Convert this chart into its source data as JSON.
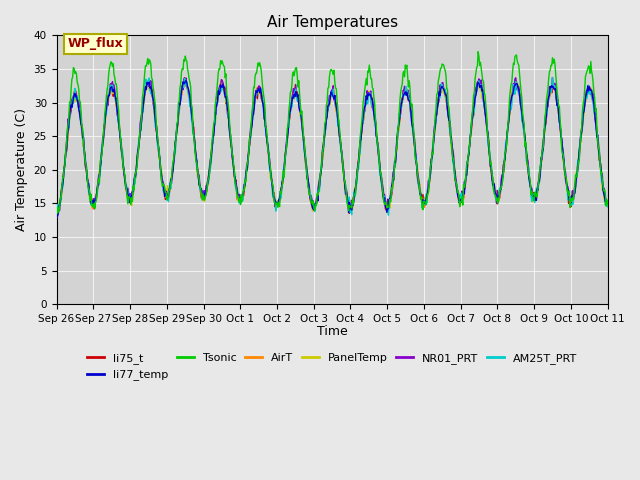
{
  "title": "Air Temperatures",
  "ylabel": "Air Temperature (C)",
  "xlabel": "Time",
  "ylim": [
    0,
    40
  ],
  "yticks": [
    0,
    5,
    10,
    15,
    20,
    25,
    30,
    35,
    40
  ],
  "fig_facecolor": "#e8e8e8",
  "ax_facecolor": "#d3d3d3",
  "legend_items": [
    {
      "label": "li75_t",
      "color": "#cc0000"
    },
    {
      "label": "li77_temp",
      "color": "#0000cc"
    },
    {
      "label": "Tsonic",
      "color": "#00cc00"
    },
    {
      "label": "AirT",
      "color": "#ff8800"
    },
    {
      "label": "PanelTemp",
      "color": "#cccc00"
    },
    {
      "label": "NR01_PRT",
      "color": "#8800cc"
    },
    {
      "label": "AM25T_PRT",
      "color": "#00cccc"
    }
  ],
  "xtick_labels": [
    "Sep 26",
    "Sep 27",
    "Sep 28",
    "Sep 29",
    "Sep 30",
    "Oct 1",
    "Oct 2",
    "Oct 3",
    "Oct 4",
    "Oct 5",
    "Oct 6",
    "Oct 7",
    "Oct 8",
    "Oct 9",
    "Oct 10",
    "Oct 11"
  ],
  "annotation_text": "WP_flux"
}
